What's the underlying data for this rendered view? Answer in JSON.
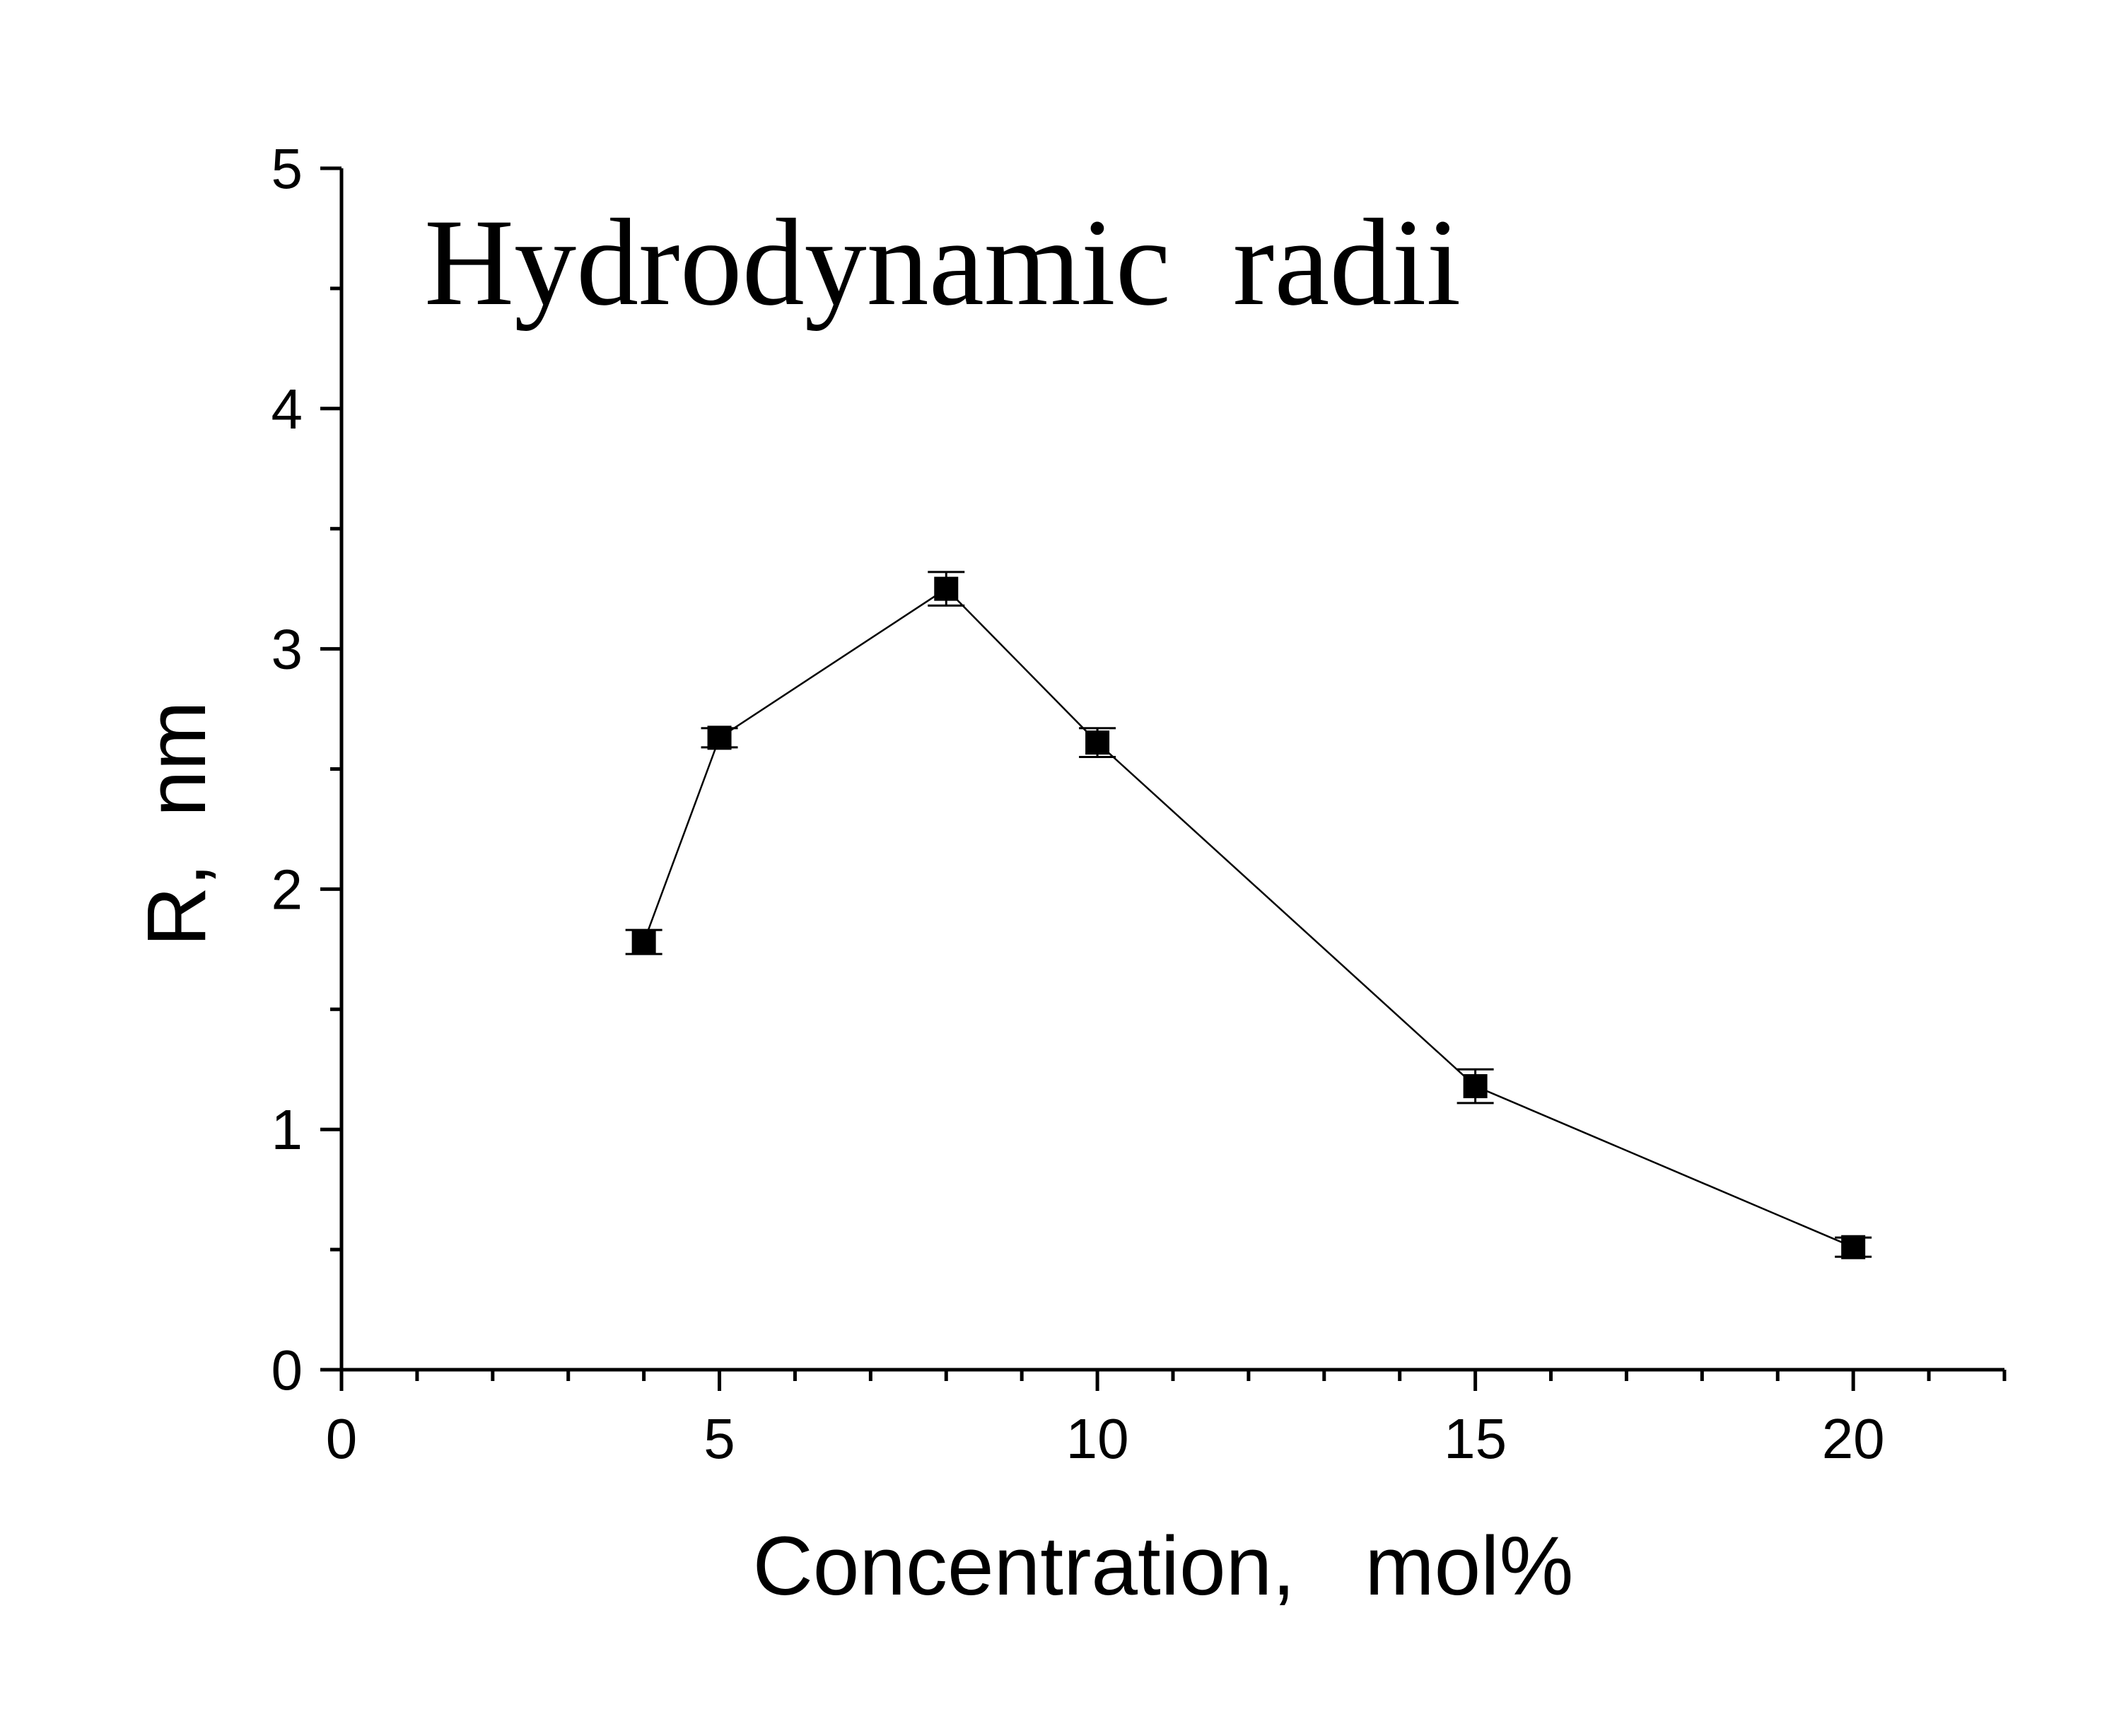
{
  "chart_data": {
    "type": "scatter",
    "title": "Hydrodynamic  radii",
    "xlabel": "Concentration,   mol%",
    "ylabel": "R,  nm",
    "xlim": [
      0,
      22
    ],
    "ylim": [
      0,
      5
    ],
    "x_ticks_major": [
      0,
      5,
      10,
      15,
      20
    ],
    "x_ticks_minor_step": 1,
    "y_ticks_major": [
      0,
      1,
      2,
      3,
      4,
      5
    ],
    "y_ticks_minor_step": 0.5,
    "grid": false,
    "legend": "none",
    "marker": "square",
    "line_connected": true,
    "series": [
      {
        "x": [
          4,
          5,
          8,
          10,
          15,
          20
        ],
        "y": [
          1.78,
          2.63,
          3.25,
          2.61,
          1.18,
          0.51
        ],
        "error": [
          0.05,
          0.04,
          0.07,
          0.06,
          0.07,
          0.04
        ]
      }
    ]
  }
}
